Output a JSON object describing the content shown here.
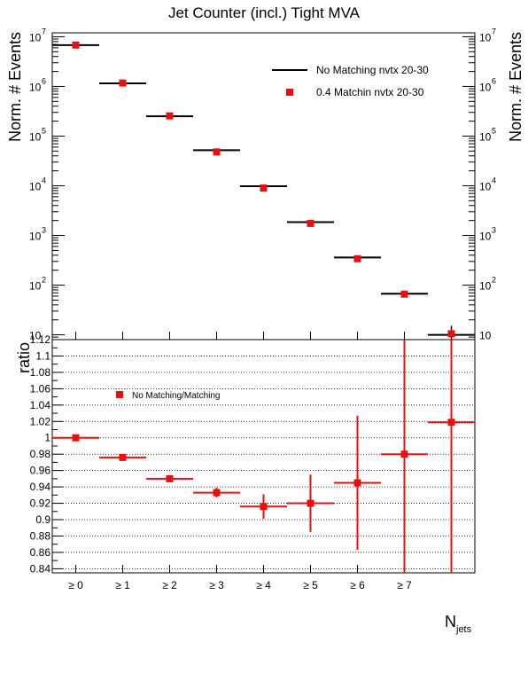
{
  "chart_data": [
    {
      "type": "scatter",
      "title": "Jet Counter (incl.) Tight MVA",
      "ylabel": "Norm. # Events",
      "yscale": "log",
      "ylim": [
        8,
        12000000
      ],
      "categories": [
        "≥ 0",
        "≥ 1",
        "≥ 2",
        "≥ 3",
        "≥ 4",
        "≥ 5",
        "≥ 6",
        "≥ 7",
        ""
      ],
      "legend_position": "top-right",
      "series": [
        {
          "name": "No Matching nvtx 20-30",
          "style": "horizontal bars",
          "color": "#000000",
          "values": [
            6800000,
            1150000,
            250000,
            52000,
            9800,
            1850,
            360,
            67,
            10
          ]
        },
        {
          "name": "0.4 Matchin nvtx 20-30",
          "style": "square markers",
          "color": "#e8100f",
          "values": [
            6800000,
            1170000,
            255000,
            48000,
            9000,
            1750,
            340,
            66,
            10.5
          ]
        }
      ],
      "y_tick_labels": [
        "10",
        "10",
        "10",
        "10",
        "10",
        "10",
        "10"
      ],
      "y_tick_exponents": [
        "7",
        "6",
        "5",
        "4",
        "3",
        "2",
        ""
      ]
    },
    {
      "type": "scatter",
      "ylabel": "ratio",
      "xlabel": "N",
      "xlabel_sub": "jets",
      "ylim": [
        0.835,
        1.12
      ],
      "grid": "horizontal dotted",
      "categories": [
        "≥ 0",
        "≥ 1",
        "≥ 2",
        "≥ 3",
        "≥ 4",
        "≥ 5",
        "≥ 6",
        "≥ 7",
        ""
      ],
      "series": [
        {
          "name": "No Matching/Matching",
          "color": "#e8100f",
          "values": [
            1.0,
            0.976,
            0.95,
            0.933,
            0.916,
            0.92,
            0.945,
            0.98,
            1.019
          ],
          "errors": [
            0.001,
            0.002,
            0.003,
            0.006,
            0.015,
            0.035,
            0.082,
            0.16,
            0.2
          ]
        }
      ],
      "y_ticks": [
        0.84,
        0.86,
        0.88,
        0.9,
        0.92,
        0.94,
        0.96,
        0.98,
        1,
        1.02,
        1.04,
        1.06,
        1.08,
        1.1,
        1.12
      ],
      "y_tick_labels": [
        "0.84",
        "0.86",
        "0.88",
        "0.9",
        "0.92",
        "0.94",
        "0.96",
        "0.98",
        "1",
        "1.02",
        "1.04",
        "1.06",
        "1.08",
        "1.1",
        "1.12"
      ]
    }
  ]
}
